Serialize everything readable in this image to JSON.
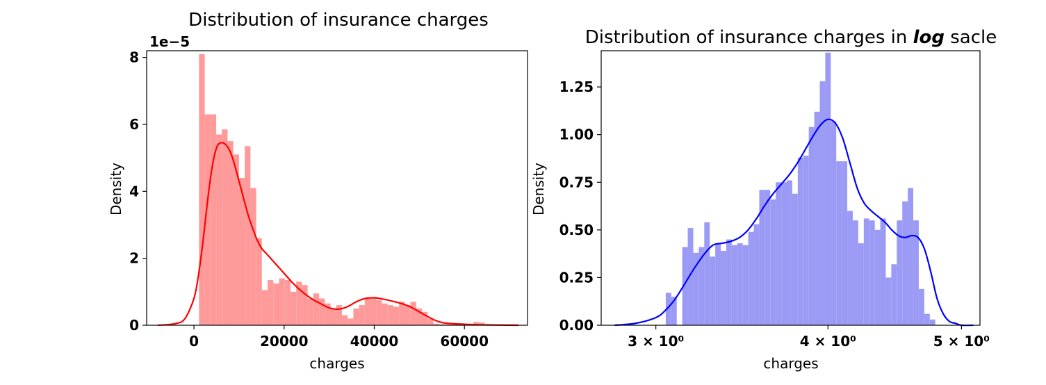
{
  "chart_data": [
    {
      "type": "histogram+kde",
      "title": "Distribution of insurance charges",
      "xlabel": "charges",
      "ylabel": "Density",
      "y_offset_label": "1e−5",
      "y_scale": 1e-05,
      "xlim": [
        -10500,
        74000
      ],
      "ylim": [
        0,
        8.2
      ],
      "x_ticks": [
        0,
        20000,
        40000,
        60000
      ],
      "x_tick_labels": [
        "0",
        "20000",
        "40000",
        "60000"
      ],
      "y_ticks": [
        0,
        2,
        4,
        6,
        8
      ],
      "y_tick_labels": [
        "0",
        "2",
        "4",
        "6",
        "8"
      ],
      "bar_color": "#ff9a9a",
      "kde_color": "#ff0000",
      "hist_start": 1122,
      "bin_width": 1268,
      "bin_values": [
        8.1,
        6.3,
        6.3,
        5.7,
        5.85,
        5.5,
        5.1,
        4.4,
        5.35,
        4.1,
        2.6,
        1.05,
        1.35,
        1.25,
        1.4,
        1.35,
        1.0,
        1.3,
        1.2,
        0.8,
        0.95,
        0.8,
        0.65,
        0.5,
        0.6,
        0.3,
        0.2,
        0.5,
        0.6,
        0.8,
        0.8,
        0.75,
        0.65,
        0.6,
        0.55,
        0.7,
        0.6,
        0.7,
        0.5,
        0.4,
        0.2,
        0.05,
        0.03,
        0.02,
        0.02,
        0.02,
        0.03,
        0.03,
        0.1,
        0.08
      ],
      "kde": {
        "x": [
          -8000,
          -4000,
          -2000,
          0,
          1000,
          2000,
          3000,
          4000,
          5000,
          6000,
          7000,
          8000,
          9000,
          10000,
          11000,
          12000,
          13000,
          14000,
          15000,
          16000,
          17000,
          18000,
          20000,
          22000,
          24000,
          26000,
          28000,
          30000,
          32000,
          34000,
          36000,
          38000,
          40000,
          42000,
          44000,
          46000,
          48000,
          50000,
          52000,
          54000,
          56000,
          60000,
          65000,
          72000
        ],
        "y": [
          0.0,
          0.05,
          0.2,
          0.8,
          1.5,
          2.5,
          3.7,
          4.7,
          5.3,
          5.45,
          5.4,
          5.2,
          4.8,
          4.3,
          3.8,
          3.3,
          2.9,
          2.55,
          2.3,
          2.15,
          2.0,
          1.85,
          1.55,
          1.25,
          1.0,
          0.8,
          0.65,
          0.52,
          0.48,
          0.55,
          0.7,
          0.8,
          0.82,
          0.78,
          0.72,
          0.65,
          0.55,
          0.4,
          0.25,
          0.12,
          0.06,
          0.03,
          0.01,
          0.0
        ]
      }
    },
    {
      "type": "histogram+kde",
      "title": "Distribution of insurance charges in ",
      "title_emph": "log",
      "title_suffix": " sacle",
      "xlabel": "charges",
      "ylabel": "Density",
      "x_scale": "log",
      "xlim": [
        2.738,
        5.157
      ],
      "ylim": [
        0,
        1.44
      ],
      "x_ticks": [
        3,
        4,
        5
      ],
      "x_tick_labels": [
        "3 × 10⁰",
        "4 × 10⁰",
        "5 × 10⁰"
      ],
      "y_ticks": [
        0.0,
        0.25,
        0.5,
        0.75,
        1.0,
        1.25
      ],
      "y_tick_labels": [
        "0.00",
        "0.25",
        "0.50",
        "0.75",
        "1.00",
        "1.25"
      ],
      "bar_color": "#9b9bf5",
      "kde_color": "#0000ff",
      "hist_start": 3.05,
      "hist_end": 4.83,
      "bin_values": [
        0.17,
        0.15,
        0.0,
        0.41,
        0.51,
        0.38,
        0.41,
        0.54,
        0.36,
        0.43,
        0.39,
        0.45,
        0.42,
        0.43,
        0.42,
        0.49,
        0.53,
        0.71,
        0.71,
        0.66,
        0.75,
        0.75,
        0.76,
        0.69,
        0.88,
        0.89,
        1.04,
        1.12,
        1.28,
        1.43,
        1.07,
        0.86,
        0.86,
        0.6,
        0.55,
        0.43,
        0.56,
        0.55,
        0.5,
        0.56,
        0.25,
        0.32,
        0.55,
        0.65,
        0.72,
        0.55,
        0.19,
        0.06,
        0.03,
        0.0
      ],
      "kde": {
        "x": [
          2.8,
          2.9,
          3.0,
          3.05,
          3.1,
          3.15,
          3.2,
          3.25,
          3.3,
          3.35,
          3.4,
          3.45,
          3.5,
          3.55,
          3.6,
          3.65,
          3.7,
          3.75,
          3.8,
          3.85,
          3.9,
          3.95,
          4.0,
          4.05,
          4.1,
          4.15,
          4.2,
          4.25,
          4.3,
          4.35,
          4.4,
          4.45,
          4.5,
          4.55,
          4.6,
          4.65,
          4.7,
          4.75,
          4.8,
          4.85,
          4.9,
          4.95,
          5.0,
          5.1
        ],
        "y": [
          0.0,
          0.01,
          0.04,
          0.08,
          0.14,
          0.22,
          0.3,
          0.37,
          0.42,
          0.43,
          0.44,
          0.46,
          0.5,
          0.56,
          0.63,
          0.69,
          0.74,
          0.79,
          0.85,
          0.92,
          0.99,
          1.05,
          1.08,
          1.06,
          0.98,
          0.85,
          0.72,
          0.64,
          0.6,
          0.57,
          0.54,
          0.5,
          0.47,
          0.46,
          0.47,
          0.46,
          0.4,
          0.28,
          0.14,
          0.06,
          0.02,
          0.01,
          0.0,
          0.0
        ]
      }
    }
  ]
}
